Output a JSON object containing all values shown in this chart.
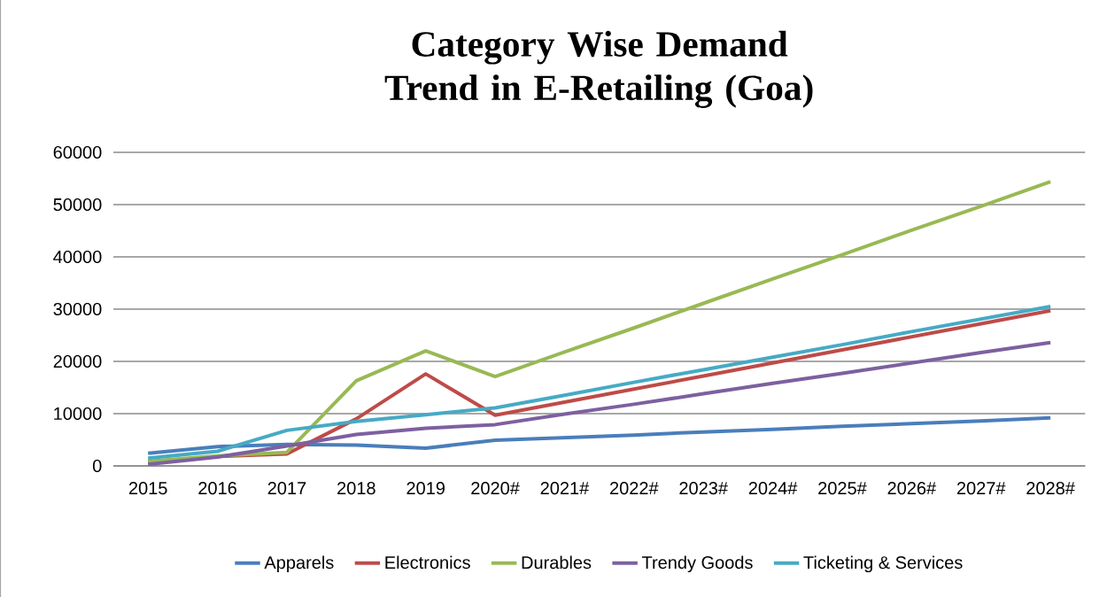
{
  "chart_data": {
    "type": "line",
    "title": "Category Wise Demand Trend in E-Retailing (Goa)",
    "categories": [
      "2015",
      "2016",
      "2017",
      "2018",
      "2019",
      "2020#",
      "2021#",
      "2022#",
      "2023#",
      "2024#",
      "2025#",
      "2026#",
      "2027#",
      "2028#"
    ],
    "series": [
      {
        "name": "Apparels",
        "color": "#4a7ebb",
        "values": [
          2400,
          3700,
          4100,
          4000,
          3400,
          4900,
          5400,
          5900,
          6500,
          7000,
          7600,
          8100,
          8600,
          9200
        ]
      },
      {
        "name": "Electronics",
        "color": "#be4b48",
        "values": [
          700,
          1800,
          2300,
          9000,
          17600,
          9700,
          12200,
          14700,
          17200,
          19700,
          22200,
          24700,
          27200,
          29700
        ]
      },
      {
        "name": "Durables",
        "color": "#98b954",
        "values": [
          900,
          1900,
          2600,
          16300,
          22000,
          17100,
          21800,
          26400,
          31100,
          35800,
          40400,
          45100,
          49700,
          54400
        ]
      },
      {
        "name": "Trendy Goods",
        "color": "#7d60a0",
        "values": [
          300,
          1700,
          3800,
          6000,
          7200,
          7900,
          9900,
          11800,
          13800,
          15800,
          17700,
          19700,
          21700,
          23600
        ]
      },
      {
        "name": "Ticketing & Services",
        "color": "#46aac5",
        "values": [
          1500,
          2800,
          6800,
          8500,
          9800,
          11100,
          13500,
          16000,
          18400,
          20800,
          23200,
          25700,
          28100,
          30500
        ]
      }
    ],
    "ylim": [
      0,
      60000
    ],
    "yticks": [
      0,
      10000,
      20000,
      30000,
      40000,
      50000,
      60000
    ],
    "grid": "y",
    "legend": "bottom",
    "marker": "none",
    "line_style": "solid"
  }
}
